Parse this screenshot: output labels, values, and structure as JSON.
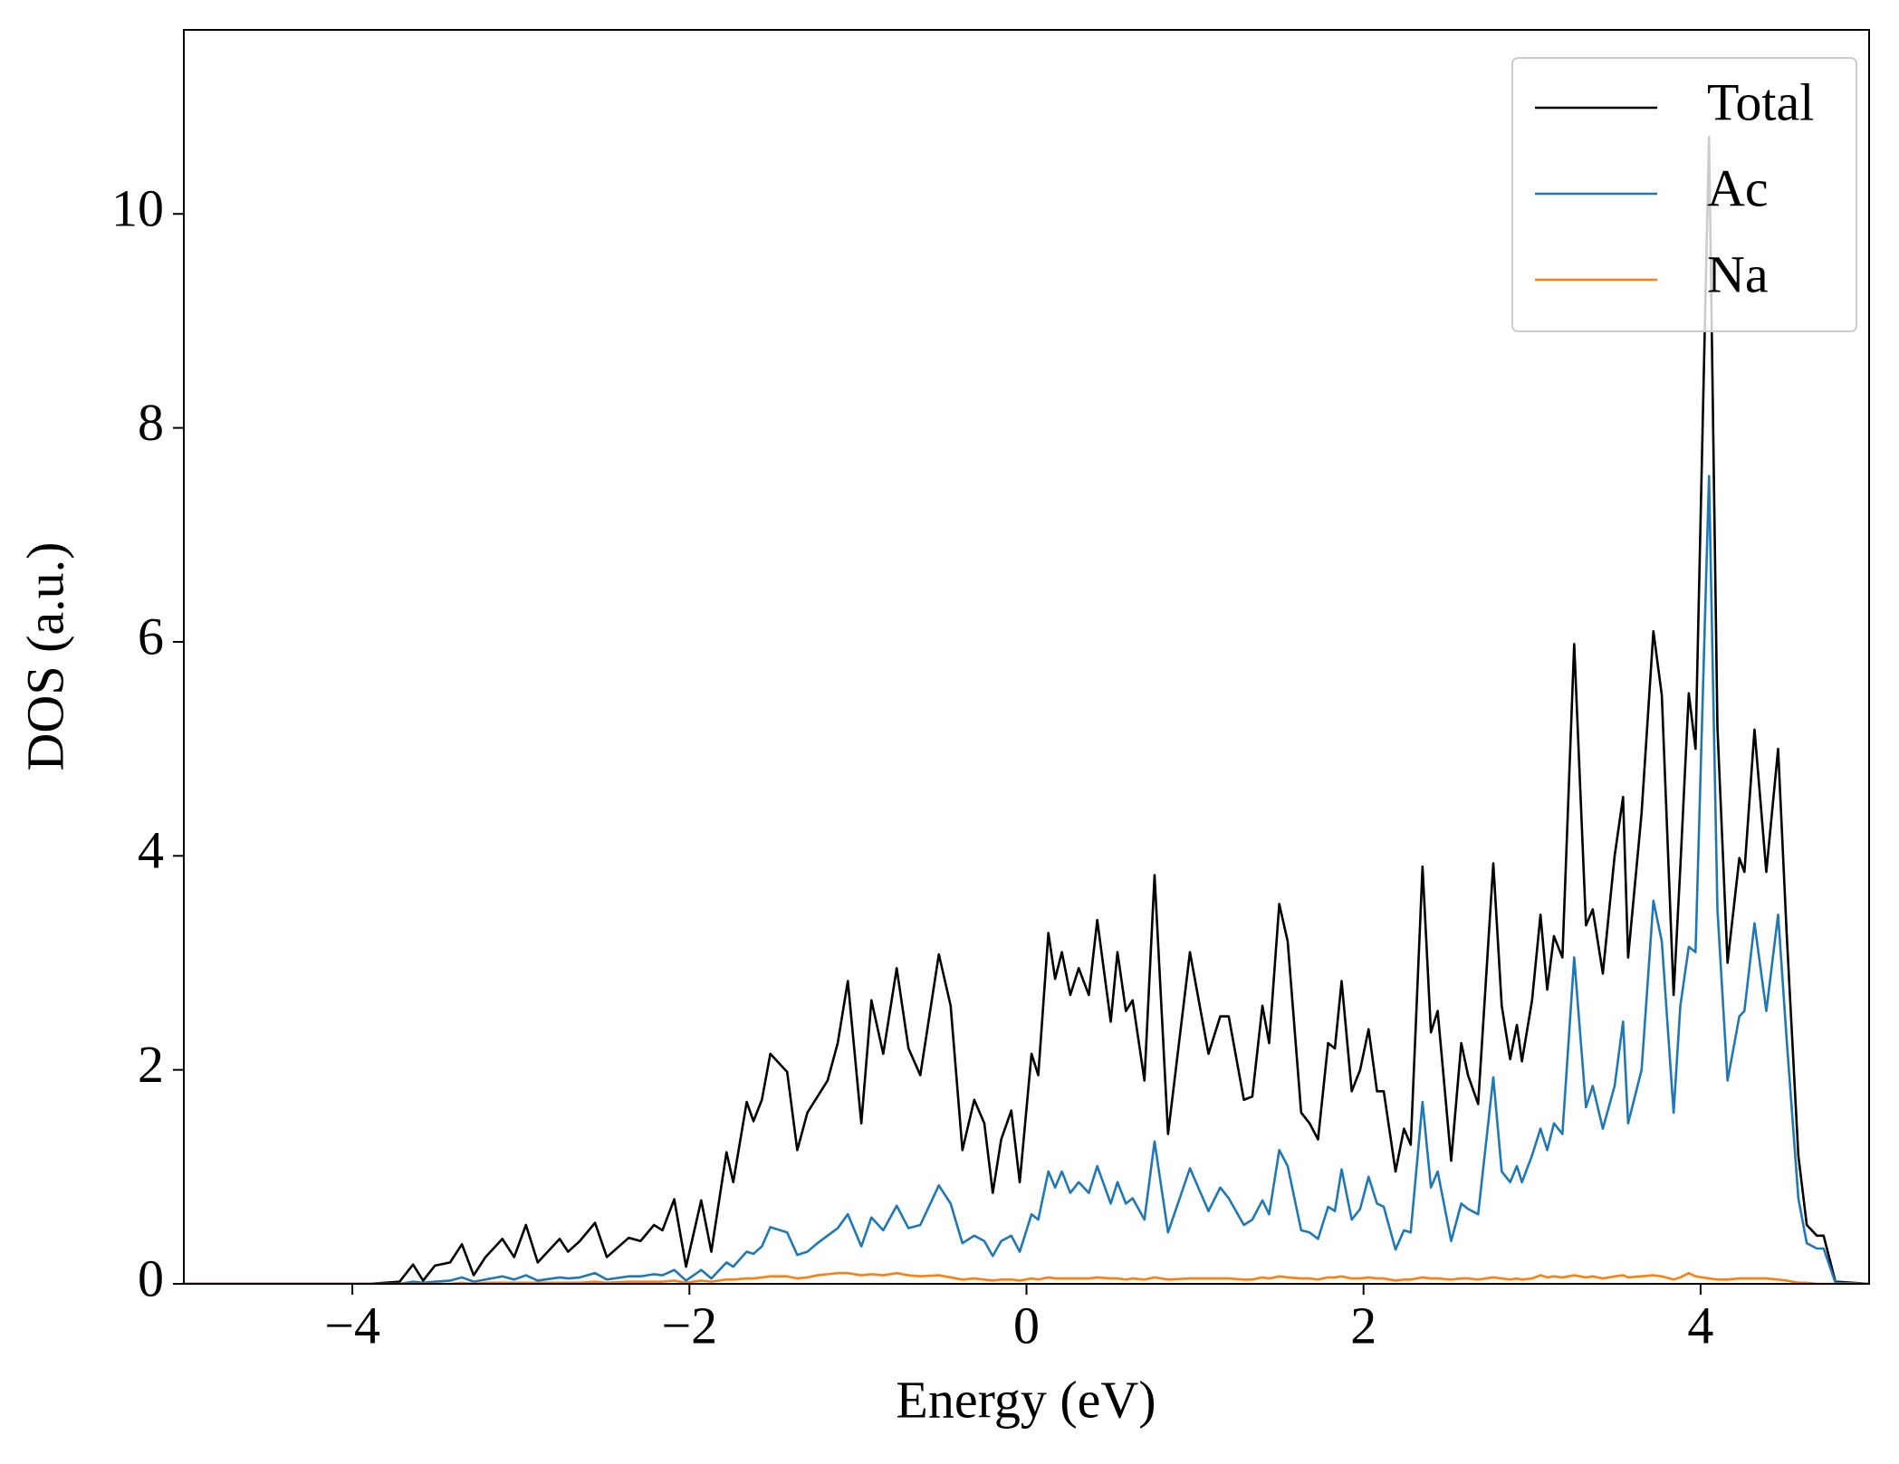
{
  "chart_data": {
    "type": "line",
    "xlabel": "Energy (eV)",
    "ylabel": "DOS (a.u.)",
    "xlim": [
      -5,
      5
    ],
    "ylim": [
      0,
      11.72
    ],
    "xticks": [
      {
        "value": -4,
        "label": "−4"
      },
      {
        "value": -2,
        "label": "−2"
      },
      0,
      2,
      4
    ],
    "yticks": [
      0,
      2,
      4,
      6,
      8,
      10
    ],
    "grid": false,
    "legend": "upper right",
    "x": [
      -5,
      -4.5,
      -3.9,
      -3.72,
      -3.64,
      -3.58,
      -3.51,
      -3.42,
      -3.35,
      -3.28,
      -3.21,
      -3.11,
      -3.04,
      -2.97,
      -2.9,
      -2.77,
      -2.72,
      -2.65,
      -2.56,
      -2.49,
      -2.36,
      -2.29,
      -2.21,
      -2.16,
      -2.09,
      -2.02,
      -1.93,
      -1.87,
      -1.78,
      -1.74,
      -1.66,
      -1.62,
      -1.57,
      -1.52,
      -1.42,
      -1.36,
      -1.3,
      -1.24,
      -1.18,
      -1.12,
      -1.06,
      -0.98,
      -0.92,
      -0.85,
      -0.77,
      -0.7,
      -0.63,
      -0.52,
      -0.45,
      -0.38,
      -0.31,
      -0.25,
      -0.2,
      -0.15,
      -0.09,
      -0.04,
      0.03,
      0.07,
      0.13,
      0.17,
      0.21,
      0.26,
      0.31,
      0.37,
      0.42,
      0.5,
      0.54,
      0.59,
      0.63,
      0.7,
      0.76,
      0.84,
      0.97,
      1.08,
      1.15,
      1.2,
      1.29,
      1.34,
      1.4,
      1.44,
      1.5,
      1.55,
      1.63,
      1.68,
      1.73,
      1.79,
      1.83,
      1.87,
      1.93,
      1.98,
      2.03,
      2.08,
      2.12,
      2.19,
      2.24,
      2.28,
      2.35,
      2.4,
      2.44,
      2.52,
      2.58,
      2.62,
      2.68,
      2.77,
      2.82,
      2.87,
      2.91,
      2.94,
      3.0,
      3.05,
      3.09,
      3.13,
      3.18,
      3.25,
      3.32,
      3.36,
      3.42,
      3.49,
      3.54,
      3.57,
      3.65,
      3.72,
      3.77,
      3.84,
      3.88,
      3.93,
      3.97,
      4.05,
      4.1,
      4.16,
      4.23,
      4.26,
      4.32,
      4.39,
      4.46,
      4.51,
      4.58,
      4.63,
      4.69,
      4.73,
      4.8,
      5
    ],
    "series": [
      {
        "name": "Total",
        "color": "#000000",
        "values": [
          0,
          0,
          0,
          0.02,
          0.18,
          0.03,
          0.17,
          0.2,
          0.37,
          0.08,
          0.25,
          0.42,
          0.25,
          0.55,
          0.2,
          0.42,
          0.3,
          0.4,
          0.57,
          0.25,
          0.43,
          0.4,
          0.55,
          0.5,
          0.79,
          0.16,
          0.78,
          0.3,
          1.23,
          0.95,
          1.7,
          1.52,
          1.72,
          2.15,
          1.98,
          1.25,
          1.6,
          1.75,
          1.9,
          2.25,
          2.83,
          1.5,
          2.65,
          2.15,
          2.95,
          2.2,
          1.95,
          3.08,
          2.6,
          1.25,
          1.72,
          1.5,
          0.85,
          1.35,
          1.62,
          0.95,
          2.15,
          1.95,
          3.28,
          2.85,
          3.1,
          2.7,
          2.95,
          2.7,
          3.4,
          2.45,
          3.1,
          2.55,
          2.65,
          1.9,
          3.82,
          1.4,
          3.1,
          2.15,
          2.5,
          2.5,
          1.72,
          1.75,
          2.6,
          2.25,
          3.55,
          3.2,
          1.6,
          1.5,
          1.35,
          2.25,
          2.2,
          2.83,
          1.8,
          2.0,
          2.38,
          1.8,
          1.8,
          1.05,
          1.45,
          1.3,
          3.9,
          2.35,
          2.55,
          1.15,
          2.25,
          1.95,
          1.68,
          3.93,
          2.6,
          2.1,
          2.42,
          2.08,
          2.65,
          3.45,
          2.75,
          3.25,
          3.05,
          5.98,
          3.35,
          3.5,
          2.9,
          4.0,
          4.55,
          3.05,
          4.4,
          6.1,
          5.5,
          2.7,
          3.9,
          5.52,
          5.0,
          10.72,
          5.2,
          3.0,
          3.98,
          3.85,
          5.18,
          3.85,
          5.0,
          3.3,
          1.2,
          0.55,
          0.45,
          0.45,
          0.02,
          0
        ]
      },
      {
        "name": "Ac",
        "color": "#1f77b4",
        "values": [
          0,
          0,
          0,
          0,
          0.02,
          0.01,
          0.02,
          0.03,
          0.06,
          0.02,
          0.04,
          0.07,
          0.04,
          0.08,
          0.03,
          0.06,
          0.05,
          0.06,
          0.1,
          0.04,
          0.07,
          0.07,
          0.09,
          0.08,
          0.13,
          0.03,
          0.13,
          0.05,
          0.2,
          0.16,
          0.3,
          0.28,
          0.35,
          0.53,
          0.48,
          0.27,
          0.3,
          0.38,
          0.45,
          0.52,
          0.65,
          0.35,
          0.62,
          0.5,
          0.73,
          0.52,
          0.55,
          0.92,
          0.75,
          0.38,
          0.45,
          0.4,
          0.26,
          0.4,
          0.45,
          0.3,
          0.65,
          0.6,
          1.05,
          0.9,
          1.05,
          0.85,
          0.95,
          0.85,
          1.1,
          0.75,
          0.95,
          0.75,
          0.8,
          0.6,
          1.33,
          0.48,
          1.08,
          0.68,
          0.9,
          0.8,
          0.55,
          0.6,
          0.78,
          0.65,
          1.25,
          1.1,
          0.5,
          0.48,
          0.42,
          0.72,
          0.68,
          1.07,
          0.6,
          0.7,
          1.0,
          0.75,
          0.72,
          0.32,
          0.5,
          0.48,
          1.7,
          0.9,
          1.05,
          0.4,
          0.75,
          0.7,
          0.65,
          1.93,
          1.05,
          0.95,
          1.1,
          0.95,
          1.2,
          1.45,
          1.25,
          1.5,
          1.4,
          3.05,
          1.65,
          1.85,
          1.45,
          1.85,
          2.45,
          1.5,
          2.0,
          3.58,
          3.2,
          1.6,
          2.6,
          3.15,
          3.1,
          7.55,
          3.5,
          1.9,
          2.5,
          2.55,
          3.37,
          2.55,
          3.45,
          2.3,
          0.8,
          0.38,
          0.33,
          0.33,
          0.01,
          0
        ]
      },
      {
        "name": "Na",
        "color": "#ff7f0e",
        "values": [
          0,
          0,
          0,
          0,
          0,
          0,
          0,
          0,
          0.01,
          0,
          0.01,
          0.01,
          0.01,
          0.01,
          0.01,
          0.01,
          0.01,
          0.01,
          0.02,
          0.01,
          0.02,
          0.02,
          0.02,
          0.02,
          0.03,
          0.01,
          0.03,
          0.02,
          0.04,
          0.04,
          0.05,
          0.05,
          0.06,
          0.07,
          0.07,
          0.05,
          0.06,
          0.08,
          0.09,
          0.1,
          0.1,
          0.08,
          0.09,
          0.08,
          0.1,
          0.08,
          0.07,
          0.08,
          0.06,
          0.04,
          0.05,
          0.04,
          0.03,
          0.04,
          0.04,
          0.03,
          0.05,
          0.04,
          0.06,
          0.05,
          0.05,
          0.05,
          0.05,
          0.05,
          0.06,
          0.05,
          0.05,
          0.04,
          0.05,
          0.04,
          0.06,
          0.04,
          0.05,
          0.05,
          0.05,
          0.05,
          0.04,
          0.04,
          0.06,
          0.05,
          0.07,
          0.06,
          0.05,
          0.05,
          0.04,
          0.06,
          0.06,
          0.07,
          0.05,
          0.05,
          0.06,
          0.05,
          0.05,
          0.03,
          0.04,
          0.04,
          0.06,
          0.05,
          0.05,
          0.04,
          0.05,
          0.05,
          0.04,
          0.06,
          0.05,
          0.04,
          0.05,
          0.04,
          0.05,
          0.08,
          0.06,
          0.07,
          0.06,
          0.08,
          0.06,
          0.07,
          0.05,
          0.07,
          0.08,
          0.06,
          0.07,
          0.08,
          0.07,
          0.04,
          0.06,
          0.1,
          0.07,
          0.05,
          0.04,
          0.04,
          0.05,
          0.05,
          0.05,
          0.05,
          0.04,
          0.03,
          0.01,
          0.01,
          0,
          0,
          0,
          0
        ]
      }
    ]
  }
}
